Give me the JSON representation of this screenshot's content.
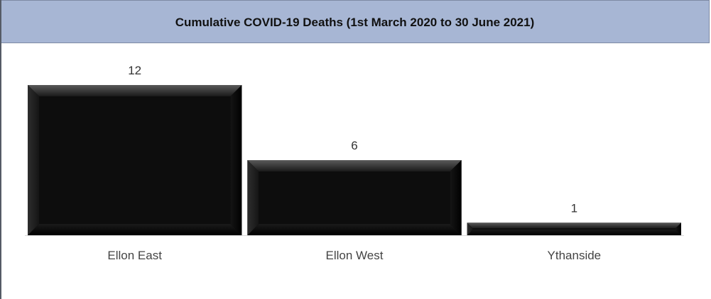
{
  "header": {
    "title": "Cumulative COVID-19 Deaths (1st March 2020 to 30 June 2021)"
  },
  "colors": {
    "header_bg": "#a7b6d4",
    "bar": "#000000"
  },
  "chart_data": {
    "type": "bar",
    "title": "Cumulative COVID-19 Deaths (1st March 2020 to 30 June 2021)",
    "categories": [
      "Ellon East",
      "Ellon West",
      "Ythanside"
    ],
    "values": [
      12,
      6,
      1
    ],
    "xlabel": "",
    "ylabel": "",
    "ylim": [
      0,
      12
    ],
    "grid": false,
    "legend": "none",
    "data_labels": [
      "12",
      "6",
      "1"
    ]
  }
}
